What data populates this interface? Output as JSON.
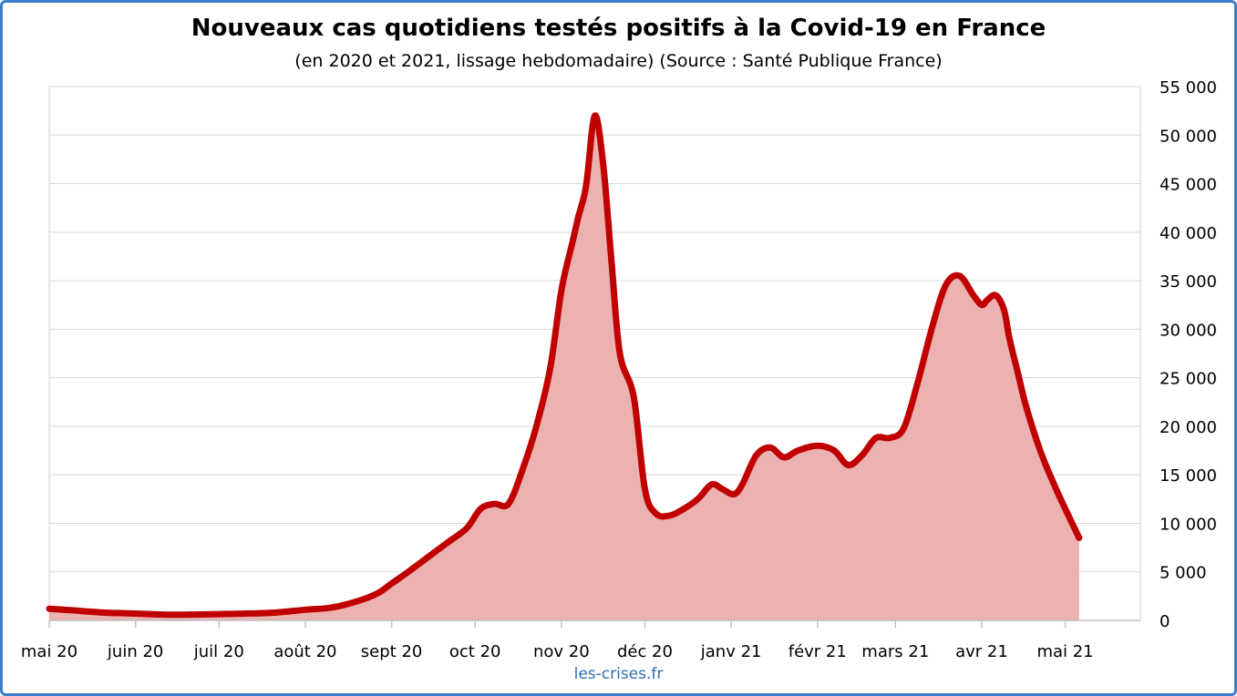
{
  "chart_data": {
    "type": "area",
    "title": "Nouveaux cas quotidiens testés positifs à la Covid-19 en France",
    "subtitle": "(en 2020 et 2021, lissage hebdomadaire) (Source : Santé Publique France)",
    "xlabel": "",
    "ylabel": "",
    "ylim": [
      0,
      55000
    ],
    "yticks": [
      0,
      5000,
      10000,
      15000,
      20000,
      25000,
      30000,
      35000,
      40000,
      45000,
      50000,
      55000
    ],
    "ytick_labels": [
      "0",
      "5 000",
      "10 000",
      "15 000",
      "20 000",
      "25 000",
      "30 000",
      "35 000",
      "40 000",
      "45 000",
      "50 000",
      "55 000"
    ],
    "xlim": [
      "2020-05-01",
      "2021-05-28"
    ],
    "xticks": [
      "2020-05-01",
      "2020-06-01",
      "2020-07-01",
      "2020-08-01",
      "2020-09-01",
      "2020-10-01",
      "2020-11-01",
      "2020-12-01",
      "2021-01-01",
      "2021-02-01",
      "2021-03-01",
      "2021-04-01",
      "2021-05-01"
    ],
    "xtick_labels": [
      "mai 20",
      "juin 20",
      "juil 20",
      "août 20",
      "sept 20",
      "oct 20",
      "nov 20",
      "déc 20",
      "janv 21",
      "févr 21",
      "mars 21",
      "avr 21",
      "mai 21"
    ],
    "y_axis_position": "right",
    "grid": true,
    "line_color": "#c00000",
    "fill_color": "#ecb1b1",
    "x": [
      "2020-05-01",
      "2020-05-11",
      "2020-05-21",
      "2020-06-01",
      "2020-06-11",
      "2020-06-21",
      "2020-07-01",
      "2020-07-11",
      "2020-07-21",
      "2020-08-01",
      "2020-08-10",
      "2020-08-20",
      "2020-08-27",
      "2020-09-01",
      "2020-09-07",
      "2020-09-14",
      "2020-09-21",
      "2020-09-28",
      "2020-10-03",
      "2020-10-08",
      "2020-10-13",
      "2020-10-18",
      "2020-10-23",
      "2020-10-28",
      "2020-11-01",
      "2020-11-05",
      "2020-11-07",
      "2020-11-08",
      "2020-11-10",
      "2020-11-13",
      "2020-11-16",
      "2020-11-19",
      "2020-11-22",
      "2020-11-27",
      "2020-12-01",
      "2020-12-05",
      "2020-12-10",
      "2020-12-15",
      "2020-12-20",
      "2020-12-25",
      "2020-12-29",
      "2021-01-02",
      "2021-01-05",
      "2021-01-10",
      "2021-01-15",
      "2021-01-20",
      "2021-01-25",
      "2021-02-01",
      "2021-02-07",
      "2021-02-12",
      "2021-02-17",
      "2021-02-22",
      "2021-02-27",
      "2021-03-04",
      "2021-03-09",
      "2021-03-14",
      "2021-03-19",
      "2021-03-24",
      "2021-03-29",
      "2021-04-01",
      "2021-04-03",
      "2021-04-06",
      "2021-04-09",
      "2021-04-11",
      "2021-04-14",
      "2021-04-17",
      "2021-04-22",
      "2021-04-27",
      "2021-05-01",
      "2021-05-06",
      "2021-05-11",
      "2021-05-16",
      "2021-05-22",
      "2021-05-28"
    ],
    "values": [
      1200,
      1000,
      800,
      700,
      600,
      600,
      650,
      700,
      800,
      1100,
      1300,
      2000,
      2800,
      3800,
      5000,
      6500,
      8000,
      9500,
      11500,
      12000,
      12000,
      15500,
      20000,
      26000,
      34000,
      39000,
      41500,
      42500,
      45000,
      52000,
      47000,
      37000,
      27500,
      23000,
      13500,
      11000,
      10800,
      11500,
      12500,
      14000,
      13500,
      13000,
      14000,
      17000,
      17800,
      16800,
      17500,
      18000,
      17500,
      16000,
      17000,
      18800,
      18800,
      19800,
      24500,
      30000,
      34500,
      35500,
      33500,
      32500,
      33000,
      33500,
      32000,
      29000,
      25500,
      22000,
      17500,
      14000,
      11500,
      8500,
      null,
      null,
      null,
      null
    ]
  },
  "footer": {
    "source": "les-crises.fr"
  }
}
